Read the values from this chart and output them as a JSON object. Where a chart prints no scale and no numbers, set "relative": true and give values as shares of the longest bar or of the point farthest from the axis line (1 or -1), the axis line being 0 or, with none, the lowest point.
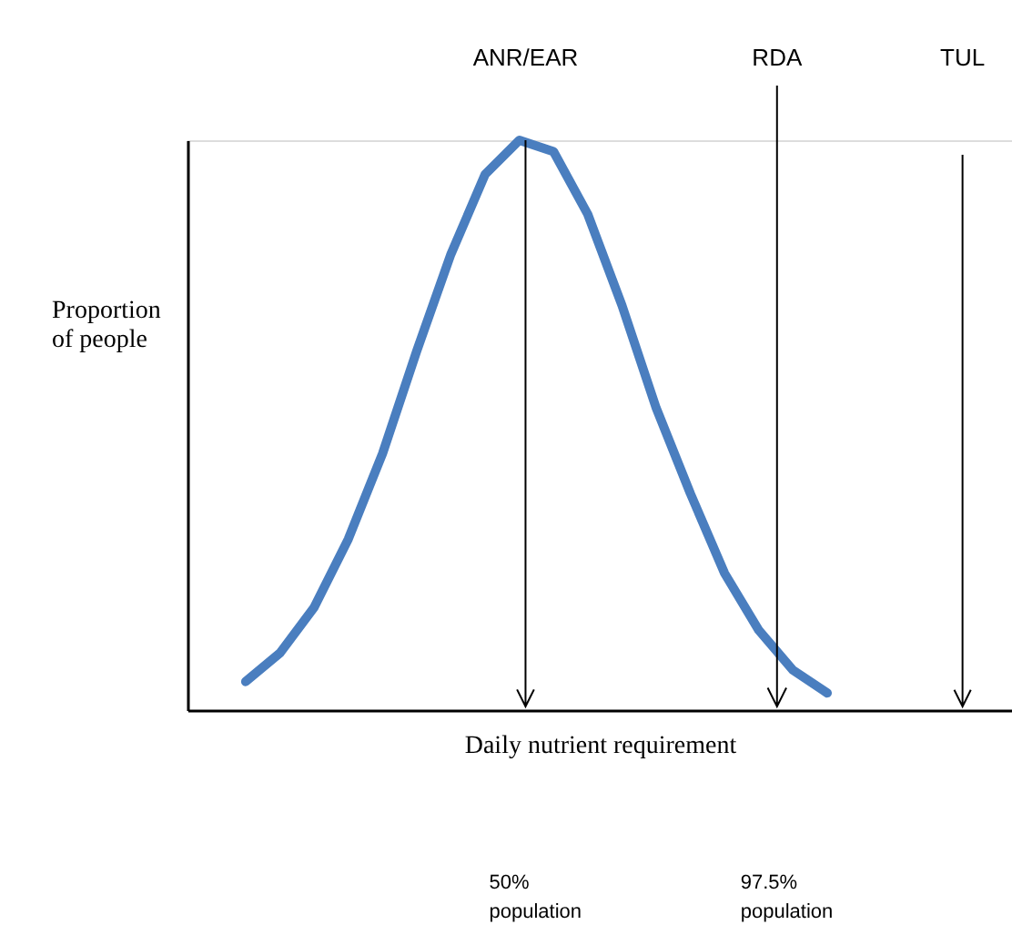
{
  "chart_data": {
    "type": "line",
    "relative": true,
    "xlabel": "Daily nutrient requirement",
    "ylabel": "Proportion of people",
    "grid": false,
    "marker": "none",
    "line_style": "solid",
    "categories": [
      null,
      null,
      null,
      null,
      null,
      null,
      null,
      null,
      null,
      null,
      null,
      null,
      null,
      null,
      null,
      null,
      null,
      null
    ],
    "series": [
      {
        "color": "#4a7ebf",
        "values": [
          0.05,
          0.1,
          0.18,
          0.3,
          0.45,
          0.63,
          0.8,
          0.94,
          1.0,
          0.98,
          0.87,
          0.71,
          0.53,
          0.38,
          0.24,
          0.14,
          0.07,
          0.03
        ]
      }
    ],
    "annotations": [
      "ANR/EAR",
      "RDA",
      "TUL",
      "50% population",
      "97.5% population"
    ]
  }
}
